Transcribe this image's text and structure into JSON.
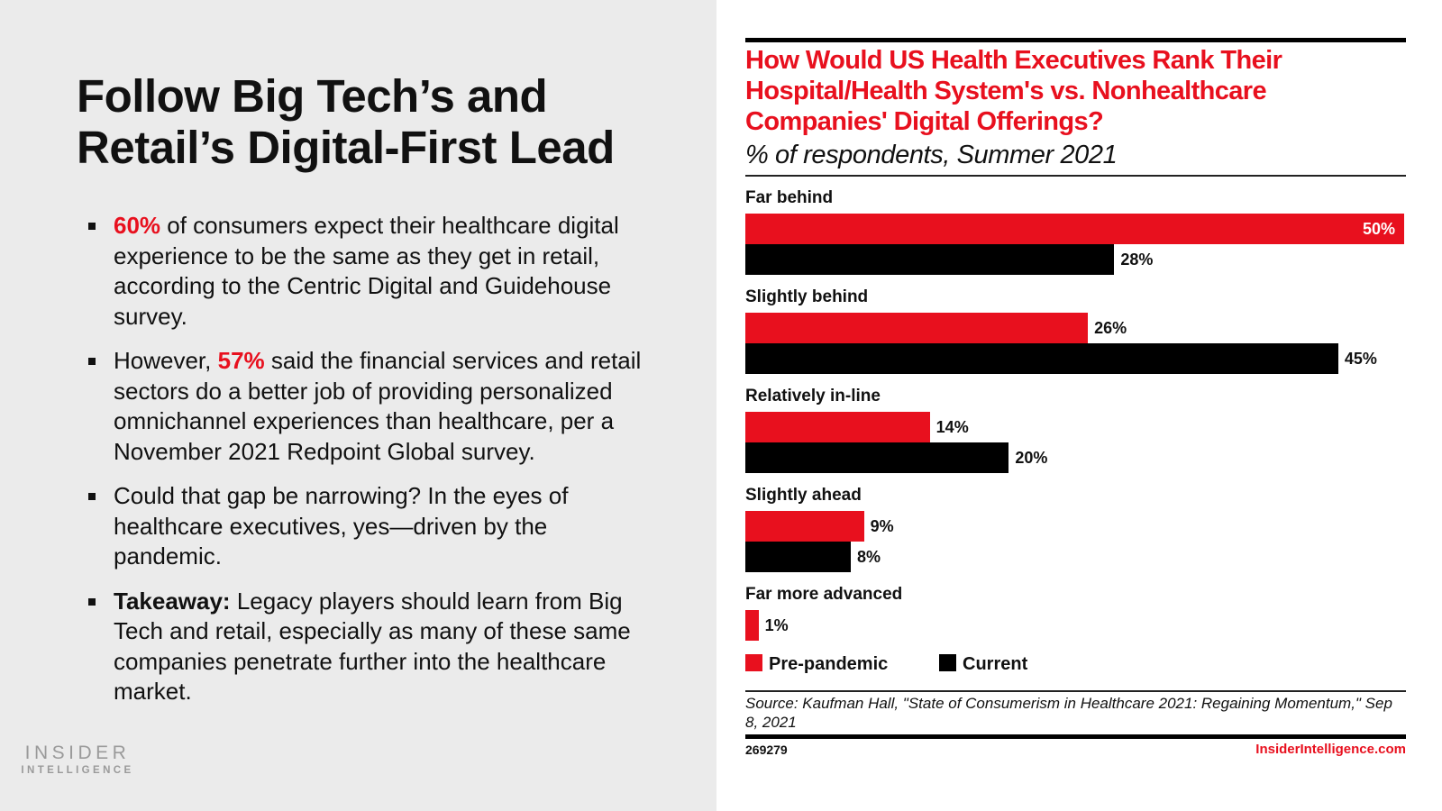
{
  "slide": {
    "title_lines": [
      "Follow Big Tech’s and",
      "Retail’s Digital-First Lead"
    ],
    "bullets": [
      {
        "highlight": "60%",
        "highlight_style": "red",
        "pre": "",
        "text": " of consumers expect their healthcare digital experience to be the same as they get in retail, according to the Centric Digital and Guidehouse survey."
      },
      {
        "pre": "However, ",
        "highlight": "57%",
        "highlight_style": "red",
        "text": " said the financial services and retail sectors do a better job of providing personalized omnichannel experiences than healthcare, per a November 2021 Redpoint Global survey."
      },
      {
        "pre": "",
        "highlight": "",
        "highlight_style": "none",
        "text": "Could that gap be narrowing? In the eyes of healthcare executives, yes—driven by the pandemic."
      },
      {
        "pre": "",
        "highlight": "Takeaway:",
        "highlight_style": "bold",
        "text": " Legacy players should learn from Big Tech and retail, especially as many of these same companies penetrate further into the healthcare market."
      }
    ],
    "logo": {
      "top": "INSIDER",
      "bottom": "INTELLIGENCE"
    }
  },
  "colors": {
    "accent": "#e8101e",
    "current": "#000000",
    "left_bg": "#ebebeb"
  },
  "chart_data": {
    "type": "bar",
    "orientation": "horizontal",
    "title": "How Would US Health Executives Rank Their Hospital/Health System's vs. Nonhealthcare Companies' Digital Offerings?",
    "subtitle": "% of respondents, Summer 2021",
    "categories": [
      "Far behind",
      "Slightly behind",
      "Relatively in-line",
      "Slightly ahead",
      "Far more advanced"
    ],
    "series": [
      {
        "name": "Pre-pandemic",
        "color": "#e8101e",
        "values": [
          50,
          26,
          14,
          9,
          1
        ],
        "labels": [
          "50%",
          "26%",
          "14%",
          "9%",
          "1%"
        ]
      },
      {
        "name": "Current",
        "color": "#000000",
        "values": [
          28,
          45,
          20,
          8,
          null
        ],
        "labels": [
          "28%",
          "45%",
          "20%",
          "8%",
          ""
        ]
      }
    ],
    "xlim": [
      0,
      50
    ],
    "unit": "%",
    "grid": false,
    "legend": "bottom-left",
    "source": "Source: Kaufman Hall, \"State of Consumerism in Healthcare 2021: Regaining Momentum,\" Sep 8, 2021",
    "chart_id": "269279",
    "brand": "InsiderIntelligence.com"
  }
}
